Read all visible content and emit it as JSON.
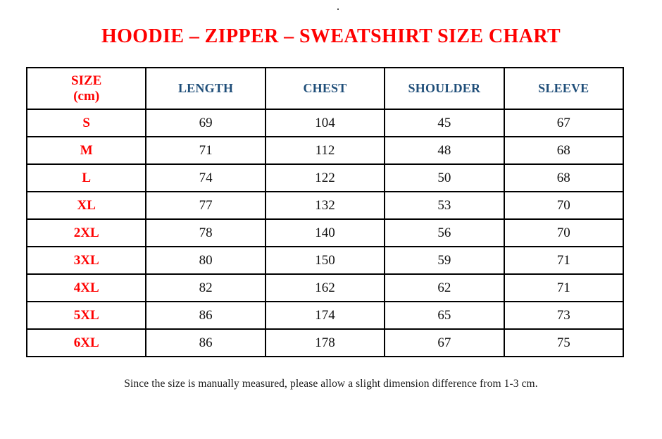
{
  "page": {
    "stray_mark": ".",
    "title": "HOODIE – ZIPPER – SWEATSHIRT SIZE CHART",
    "footnote": "Since the size is manually measured, please allow a slight dimension difference from 1-3 cm."
  },
  "colors": {
    "title_red": "#fe0000",
    "header_blue": "#1f4e79",
    "value_black": "#121212",
    "border_black": "#000000",
    "background": "#ffffff"
  },
  "table": {
    "header": {
      "size_line1": "SIZE",
      "size_line2": "(cm)",
      "columns": [
        "LENGTH",
        "CHEST",
        "SHOULDER",
        "SLEEVE"
      ]
    },
    "rows": [
      {
        "size": "S",
        "length": "69",
        "chest": "104",
        "shoulder": "45",
        "sleeve": "67"
      },
      {
        "size": "M",
        "length": "71",
        "chest": "112",
        "shoulder": "48",
        "sleeve": "68"
      },
      {
        "size": "L",
        "length": "74",
        "chest": "122",
        "shoulder": "50",
        "sleeve": "68"
      },
      {
        "size": "XL",
        "length": "77",
        "chest": "132",
        "shoulder": "53",
        "sleeve": "70"
      },
      {
        "size": "2XL",
        "length": "78",
        "chest": "140",
        "shoulder": "56",
        "sleeve": "70"
      },
      {
        "size": "3XL",
        "length": "80",
        "chest": "150",
        "shoulder": "59",
        "sleeve": "71"
      },
      {
        "size": "4XL",
        "length": "82",
        "chest": "162",
        "shoulder": "62",
        "sleeve": "71"
      },
      {
        "size": "5XL",
        "length": "86",
        "chest": "174",
        "shoulder": "65",
        "sleeve": "73"
      },
      {
        "size": "6XL",
        "length": "86",
        "chest": "178",
        "shoulder": "67",
        "sleeve": "75"
      }
    ]
  }
}
